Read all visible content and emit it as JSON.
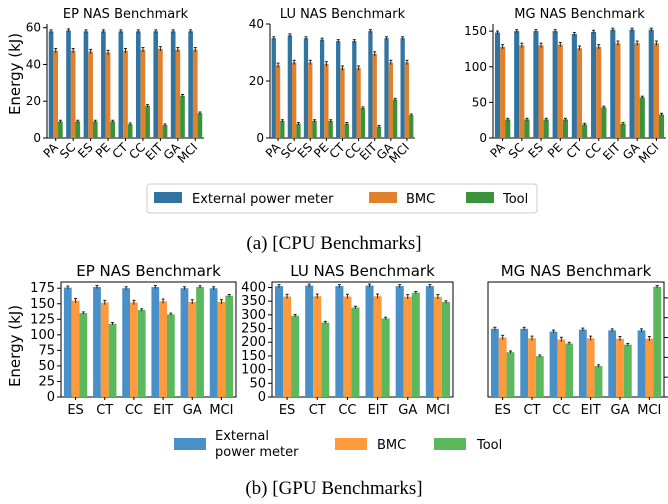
{
  "figure": {
    "caption_a": "(a) [CPU Benchmarks]",
    "caption_b": "(b) [GPU Benchmarks]",
    "ylabel": "Energy (kJ)"
  },
  "legend_a": [
    {
      "label": "External power meter",
      "color": "#3274a1"
    },
    {
      "label": "BMC",
      "color": "#e1812c"
    },
    {
      "label": "Tool",
      "color": "#3a923a"
    }
  ],
  "legend_b": [
    {
      "label": "External",
      "label2": "power meter",
      "color": "#4a90c8"
    },
    {
      "label": "BMC",
      "color": "#ff9a3c"
    },
    {
      "label": "Tool",
      "color": "#5cb85c"
    }
  ],
  "chart_data": [
    {
      "type": "bar",
      "title": "EP NAS Benchmark",
      "ylabel": "Energy (kJ)",
      "categories": [
        "PA",
        "SC",
        "ES",
        "PE",
        "CT",
        "CC",
        "EIT",
        "GA",
        "MCI"
      ],
      "ylim": [
        0,
        62
      ],
      "yticks": [
        0,
        20,
        40,
        60
      ],
      "series": [
        {
          "name": "External power meter",
          "values": [
            58,
            58.5,
            58,
            58,
            58,
            58,
            58,
            58,
            58
          ]
        },
        {
          "name": "BMC",
          "values": [
            47.5,
            47.5,
            47,
            46.5,
            47.5,
            48,
            48.5,
            48,
            48
          ]
        },
        {
          "name": "Tool",
          "values": [
            9,
            9,
            9,
            9,
            7.5,
            17.5,
            7,
            23,
            13.5
          ]
        }
      ]
    },
    {
      "type": "bar",
      "title": "LU NAS Benchmark",
      "categories": [
        "PA",
        "SC",
        "ES",
        "PE",
        "CT",
        "CC",
        "EIT",
        "GA",
        "MCI"
      ],
      "ylim": [
        0,
        40
      ],
      "yticks": [
        0,
        20,
        40
      ],
      "series": [
        {
          "name": "External power meter",
          "values": [
            35,
            36,
            35,
            34.5,
            34,
            34,
            37.5,
            35,
            35
          ]
        },
        {
          "name": "BMC",
          "values": [
            25.5,
            26.5,
            26.5,
            26,
            24.5,
            24.5,
            29.5,
            26.5,
            26.5
          ]
        },
        {
          "name": "Tool",
          "values": [
            6,
            5,
            6,
            6,
            5,
            10.5,
            4,
            13.5,
            8
          ]
        }
      ]
    },
    {
      "type": "bar",
      "title": "MG NAS Benchmark",
      "categories": [
        "PA",
        "SC",
        "ES",
        "PE",
        "CT",
        "CC",
        "EIT",
        "GA",
        "MCI"
      ],
      "ylim": [
        0,
        160
      ],
      "yticks": [
        0,
        50,
        100,
        150
      ],
      "series": [
        {
          "name": "External power meter",
          "values": [
            148,
            150,
            150,
            150,
            146,
            149,
            152,
            152,
            152
          ]
        },
        {
          "name": "BMC",
          "values": [
            128,
            130,
            130,
            131,
            126,
            128,
            133,
            133,
            133
          ]
        },
        {
          "name": "Tool",
          "values": [
            26,
            26,
            26,
            26,
            19,
            43,
            20,
            57,
            33
          ]
        }
      ]
    },
    {
      "type": "bar",
      "title": "EP NAS Benchmark",
      "ylabel": "Energy (kJ)",
      "categories": [
        "ES",
        "CT",
        "CC",
        "EIT",
        "GA",
        "MCI"
      ],
      "ylim": [
        0,
        185
      ],
      "yticks": [
        0,
        25,
        50,
        75,
        100,
        125,
        150,
        175
      ],
      "series": [
        {
          "name": "External power meter",
          "values": [
            176,
            177,
            175,
            177,
            175,
            175
          ]
        },
        {
          "name": "BMC",
          "values": [
            155,
            152,
            152,
            154,
            153,
            153
          ]
        },
        {
          "name": "Tool",
          "values": [
            135,
            118,
            140,
            133,
            177,
            163
          ]
        }
      ]
    },
    {
      "type": "bar",
      "title": "LU NAS Benchmark",
      "categories": [
        "ES",
        "CT",
        "CC",
        "EIT",
        "GA",
        "MCI"
      ],
      "ylim": [
        0,
        420
      ],
      "yticks": [
        0,
        50,
        100,
        150,
        200,
        250,
        300,
        350,
        400
      ],
      "series": [
        {
          "name": "External power meter",
          "values": [
            405,
            407,
            405,
            407,
            405,
            405
          ]
        },
        {
          "name": "BMC",
          "values": [
            367,
            368,
            367,
            368,
            366,
            366
          ]
        },
        {
          "name": "Tool",
          "values": [
            297,
            272,
            327,
            287,
            381,
            347
          ]
        }
      ]
    },
    {
      "type": "bar",
      "title": "MG NAS Benchmark",
      "categories": [
        "ES",
        "CT",
        "CC",
        "EIT",
        "GA",
        "MCI"
      ],
      "ylim": [
        0,
        290
      ],
      "yticks": [
        0,
        50,
        100,
        150,
        200,
        250
      ],
      "series": [
        {
          "name": "External power meter",
          "values": [
            172,
            172,
            165,
            170,
            168,
            168
          ]
        },
        {
          "name": "BMC",
          "values": [
            150,
            148,
            145,
            148,
            147,
            147
          ]
        },
        {
          "name": "Tool",
          "values": [
            113,
            103,
            135,
            78,
            132,
            278
          ]
        }
      ]
    }
  ]
}
